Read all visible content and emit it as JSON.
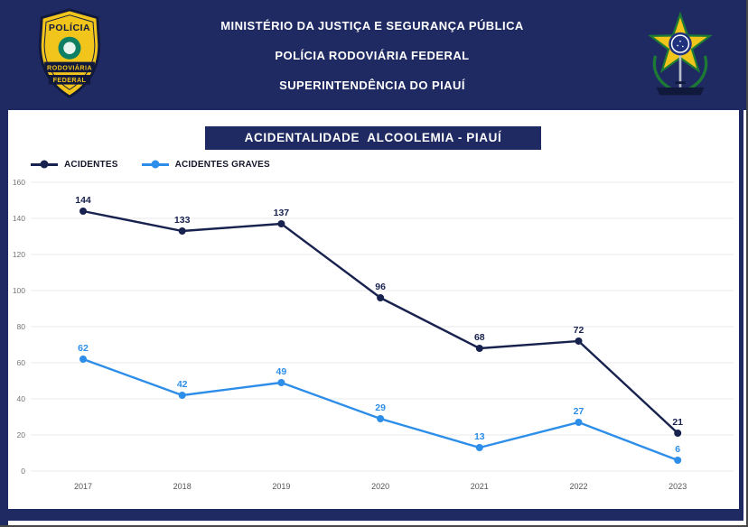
{
  "header": {
    "line1": "MINISTÉRIO DA JUSTIÇA E SEGURANÇA PÚBLICA",
    "line2": "POLÍCIA RODOVIÁRIA FEDERAL",
    "line3": "SUPERINTENDÊNCIA DO PIAUÍ",
    "left_badge": {
      "top_text": "POLÍCIA",
      "ribbon_line1": "RODOVIÁRIA",
      "ribbon_line2": "FEDERAL"
    }
  },
  "chart_data": {
    "type": "line",
    "title": "ACIDENTALIDADE  ALCOOLEMIA - PIAUÍ",
    "categories": [
      "2017",
      "2018",
      "2019",
      "2020",
      "2021",
      "2022",
      "2023"
    ],
    "series": [
      {
        "name": "ACIDENTES",
        "color": "#18224f",
        "values": [
          144,
          133,
          137,
          96,
          68,
          72,
          21
        ]
      },
      {
        "name": "ACIDENTES GRAVES",
        "color": "#2d8ee9",
        "values": [
          62,
          42,
          49,
          29,
          13,
          27,
          6
        ]
      }
    ],
    "ylim": [
      0,
      160
    ],
    "ytick_step": 20,
    "xlabel": "",
    "ylabel": "",
    "grid": true,
    "legend_position": "top-left"
  },
  "colors": {
    "navy": "#1f2a63",
    "line_navy": "#18224f",
    "accent_blue": "#2d8ee9",
    "badge_yellow": "#f2c51d",
    "grid_gray": "#eaeaea"
  }
}
